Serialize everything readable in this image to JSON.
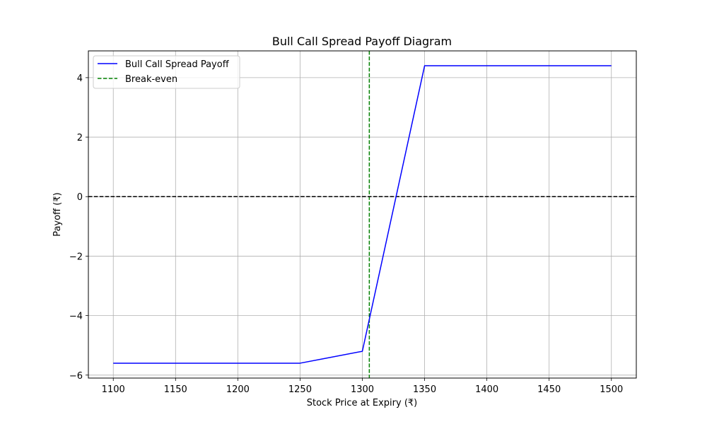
{
  "chart_data": {
    "type": "line",
    "title": "Bull Call Spread Payoff Diagram",
    "xlabel": "Stock Price at Expiry (₹)",
    "ylabel": "Payoff (₹)",
    "xlim": [
      1080,
      1520
    ],
    "ylim": [
      -6.1,
      4.9
    ],
    "x_ticks": [
      1100,
      1150,
      1200,
      1250,
      1300,
      1350,
      1400,
      1450,
      1500
    ],
    "y_ticks": [
      -6,
      -4,
      -2,
      0,
      2,
      4
    ],
    "grid": true,
    "legend_position": "top-left",
    "series": [
      {
        "name": "Bull Call Spread Payoff",
        "color": "#0000ff",
        "style": "solid",
        "x": [
          1100,
          1250,
          1300,
          1350,
          1500
        ],
        "y": [
          -5.6,
          -5.6,
          -5.2,
          4.4,
          4.4
        ]
      }
    ],
    "reference_lines": [
      {
        "name": "Break-even",
        "orientation": "vertical",
        "value": 1305.6,
        "color": "#008000",
        "style": "dashed",
        "in_legend": true
      },
      {
        "name": "",
        "orientation": "horizontal",
        "value": 0,
        "color": "#000000",
        "style": "dashed",
        "in_legend": false
      }
    ]
  }
}
